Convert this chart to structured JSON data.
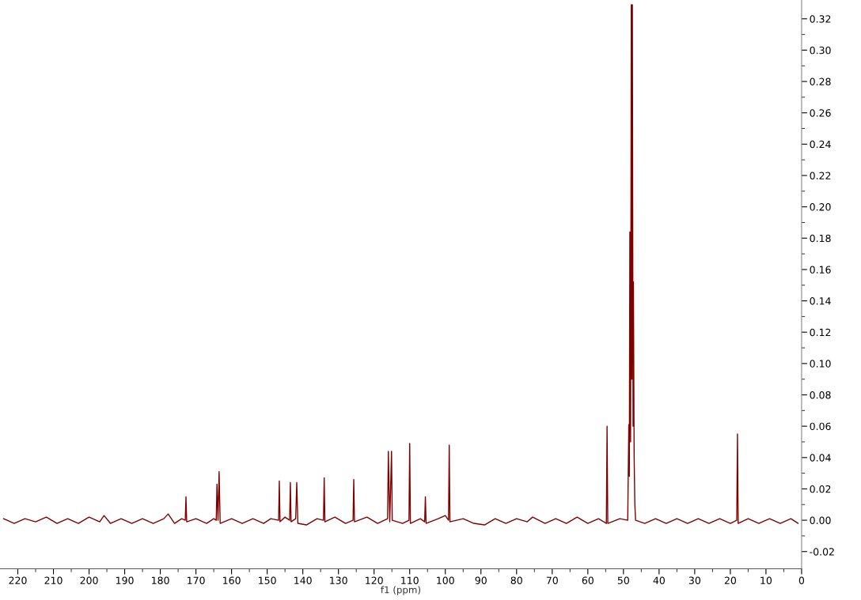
{
  "chart_data": {
    "type": "line",
    "xlabel": "f1 (ppm)",
    "x": [
      224,
      221,
      218,
      215,
      212,
      209,
      206,
      203,
      200,
      197,
      195.8,
      194,
      191,
      188,
      185,
      182,
      179,
      177.8,
      176,
      174,
      173.0,
      172.8,
      172.6,
      170,
      167,
      165,
      164.3,
      164.1,
      163.8,
      163.5,
      163.2,
      160,
      157,
      154,
      151,
      149,
      146.8,
      146.6,
      146.4,
      145,
      143.7,
      143.5,
      143.3,
      142.0,
      141.7,
      141.4,
      139,
      136,
      134.2,
      134.0,
      133.8,
      131,
      128,
      125.9,
      125.7,
      125.5,
      122,
      119,
      116.2,
      116.0,
      115.6,
      115.1,
      114.9,
      112,
      110.2,
      110.0,
      109.8,
      107,
      105.8,
      105.6,
      105.4,
      102,
      100,
      99.1,
      98.9,
      98.7,
      95,
      92,
      89,
      86,
      83,
      80,
      77,
      75.5,
      72,
      69,
      66,
      63,
      60,
      57,
      54.8,
      54.6,
      54.4,
      51,
      48.8,
      48.5,
      48.35,
      48.2,
      48.0,
      47.8,
      47.65,
      47.5,
      47.3,
      47.2,
      47.0,
      46.8,
      46.6,
      44,
      41,
      38,
      35,
      32,
      29,
      26,
      23,
      20,
      18.2,
      18.0,
      17.8,
      15,
      12,
      9,
      6,
      3,
      1
    ],
    "series": [
      {
        "color": "#800000",
        "values": [
          0.001,
          -0.002,
          0.001,
          -0.001,
          0.002,
          -0.002,
          0.001,
          -0.002,
          0.002,
          -0.001,
          0.003,
          -0.002,
          0.001,
          -0.002,
          0.001,
          -0.002,
          0.001,
          0.004,
          -0.002,
          0.001,
          0.0,
          0.015,
          -0.001,
          0.001,
          -0.002,
          0.001,
          0.0,
          0.023,
          0.0,
          0.031,
          -0.002,
          0.001,
          -0.002,
          0.001,
          -0.002,
          0.001,
          0.0,
          0.025,
          -0.001,
          0.002,
          0.0,
          0.024,
          -0.001,
          0.001,
          0.024,
          -0.002,
          -0.003,
          0.001,
          0.0,
          0.027,
          -0.001,
          0.002,
          -0.002,
          0.0,
          0.026,
          -0.001,
          0.002,
          -0.002,
          0.001,
          0.044,
          -0.001,
          0.044,
          0.0,
          -0.002,
          0.0,
          0.049,
          -0.002,
          0.001,
          -0.001,
          0.015,
          -0.002,
          0.001,
          0.003,
          0.0,
          0.048,
          -0.001,
          0.001,
          -0.002,
          -0.003,
          0.001,
          -0.002,
          0.001,
          -0.001,
          0.002,
          -0.002,
          0.001,
          -0.002,
          0.002,
          -0.002,
          0.001,
          -0.002,
          0.06,
          -0.002,
          0.001,
          0.0,
          0.061,
          0.028,
          0.184,
          0.05,
          0.329,
          0.09,
          0.329,
          0.06,
          0.152,
          0.04,
          0.01,
          0.0,
          -0.002,
          0.001,
          -0.002,
          0.001,
          -0.002,
          0.001,
          -0.002,
          0.001,
          -0.002,
          0.0,
          0.055,
          -0.002,
          0.001,
          -0.002,
          0.001,
          -0.002,
          0.001,
          -0.002
        ]
      }
    ],
    "xlim": [
      225,
      0
    ],
    "xticks": [
      220,
      210,
      200,
      190,
      180,
      170,
      160,
      150,
      140,
      130,
      120,
      110,
      100,
      90,
      80,
      70,
      60,
      50,
      40,
      30,
      20,
      10,
      0
    ],
    "ylim": [
      -0.031,
      0.332
    ],
    "yticks": [
      -0.02,
      {
        "value": 0,
        "label": "0.00"
      },
      0.02,
      0.04,
      0.06,
      0.08,
      {
        "value": 0.1,
        "label": "0.10"
      },
      0.12,
      0.14,
      0.16,
      0.18,
      {
        "value": 0.2,
        "label": "0.20"
      },
      0.22,
      0.24,
      0.26,
      0.28,
      {
        "value": 0.3,
        "label": "0.30"
      },
      0.32
    ],
    "grid": false,
    "legend": false,
    "marker": "none",
    "line_style": "solid"
  }
}
